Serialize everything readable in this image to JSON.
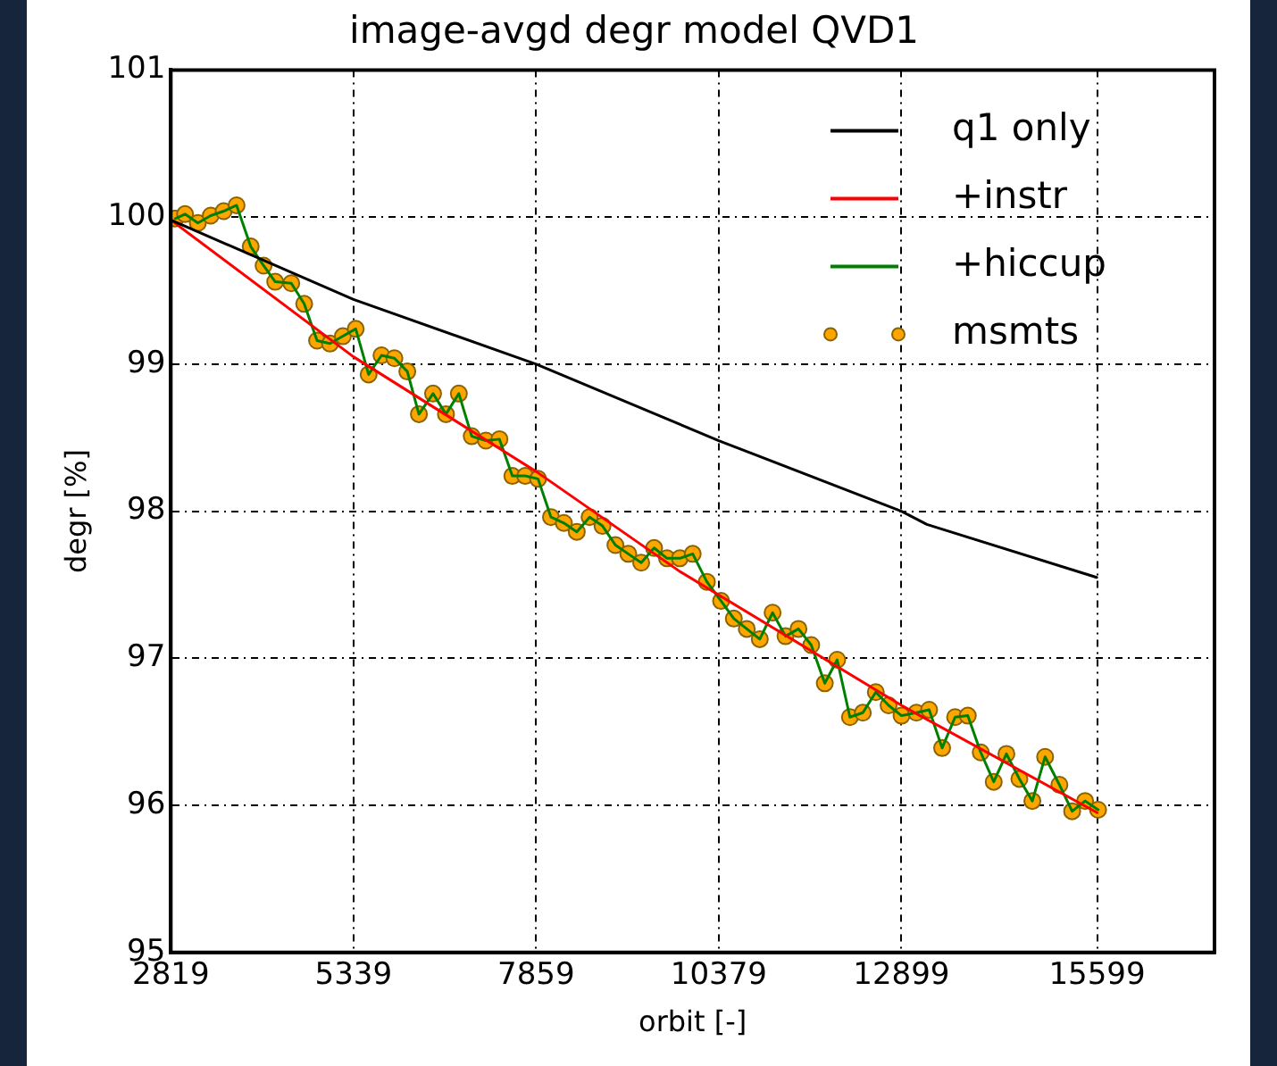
{
  "chart_data": {
    "type": "line",
    "title": "image-avgd degr model QVD1",
    "xlabel": "orbit [-]",
    "ylabel": "degr [%]",
    "xlim": [
      2819,
      17219
    ],
    "xticks": [
      2819,
      5339,
      7859,
      10379,
      12899,
      15599
    ],
    "ylim": [
      95,
      101
    ],
    "yticks": [
      95,
      96,
      97,
      98,
      99,
      100,
      101
    ],
    "grid": true,
    "legend": "top right",
    "line_style": "solid",
    "series": [
      {
        "name": "q1 only",
        "marker": "none",
        "color": "#000000",
        "x": [
          2819,
          5339,
          7859,
          10379,
          12899,
          13250,
          15594
        ],
        "values": [
          99.98,
          99.44,
          99.0,
          98.48,
          98.0,
          97.91,
          97.55
        ]
      },
      {
        "name": "+instr",
        "marker": "none",
        "color": "#ff0000",
        "x": [
          2819,
          5339,
          7859,
          9842,
          12899,
          15600
        ],
        "values": [
          99.98,
          99.05,
          98.27,
          97.59,
          96.68,
          95.95
        ]
      },
      {
        "name": "+hiccup",
        "marker": "none",
        "color": "#008000",
        "x": [
          2881,
          3015,
          3192,
          3370,
          3548,
          3726,
          3921,
          4099,
          4259,
          4481,
          4659,
          4837,
          5015,
          5193,
          5370,
          5548,
          5726,
          5904,
          6082,
          6242,
          6437,
          6615,
          6793,
          6971,
          7166,
          7353,
          7531,
          7709,
          7886,
          8064,
          8242,
          8420,
          8597,
          8775,
          8953,
          9131,
          9309,
          9487,
          9665,
          9842,
          10020,
          10215,
          10411,
          10587,
          10766,
          10945,
          11122,
          11300,
          11479,
          11655,
          11842,
          12013,
          12189,
          12367,
          12546,
          12722,
          12901,
          13106,
          13282,
          13461,
          13640,
          13815,
          13994,
          14173,
          14348,
          14527,
          14706,
          14882,
          15079,
          15255,
          15434,
          15613
        ],
        "values": [
          99.99,
          100.02,
          99.96,
          100.01,
          100.04,
          100.08,
          99.8,
          99.67,
          99.56,
          99.55,
          99.41,
          99.16,
          99.14,
          99.19,
          99.24,
          98.93,
          99.06,
          99.04,
          98.95,
          98.66,
          98.8,
          98.66,
          98.8,
          98.51,
          98.48,
          98.49,
          98.24,
          98.24,
          98.22,
          97.96,
          97.92,
          97.86,
          97.96,
          97.9,
          97.77,
          97.71,
          97.65,
          97.75,
          97.68,
          97.68,
          97.71,
          97.52,
          97.39,
          97.27,
          97.2,
          97.13,
          97.31,
          97.15,
          97.2,
          97.09,
          96.83,
          96.99,
          96.6,
          96.63,
          96.77,
          96.68,
          96.61,
          96.63,
          96.65,
          96.39,
          96.6,
          96.61,
          96.36,
          96.16,
          96.35,
          96.18,
          96.03,
          96.33,
          96.14,
          95.96,
          96.03,
          95.97
        ]
      },
      {
        "name": "msmts",
        "type": "scatter",
        "marker": "circle",
        "color": "#ffa500",
        "x": [
          2881,
          3015,
          3192,
          3370,
          3548,
          3726,
          3921,
          4099,
          4259,
          4481,
          4659,
          4837,
          5015,
          5193,
          5370,
          5548,
          5726,
          5904,
          6082,
          6242,
          6437,
          6615,
          6793,
          6971,
          7166,
          7353,
          7531,
          7709,
          7886,
          8064,
          8242,
          8420,
          8597,
          8775,
          8953,
          9131,
          9309,
          9487,
          9665,
          9842,
          10020,
          10215,
          10411,
          10587,
          10766,
          10945,
          11122,
          11300,
          11479,
          11655,
          11842,
          12013,
          12189,
          12367,
          12546,
          12722,
          12901,
          13106,
          13282,
          13461,
          13640,
          13815,
          13994,
          14173,
          14348,
          14527,
          14706,
          14882,
          15079,
          15255,
          15434,
          15613
        ],
        "values": [
          99.99,
          100.02,
          99.96,
          100.01,
          100.04,
          100.08,
          99.8,
          99.67,
          99.56,
          99.55,
          99.41,
          99.16,
          99.14,
          99.19,
          99.24,
          98.93,
          99.06,
          99.04,
          98.95,
          98.66,
          98.8,
          98.66,
          98.8,
          98.51,
          98.48,
          98.49,
          98.24,
          98.24,
          98.22,
          97.96,
          97.92,
          97.86,
          97.96,
          97.9,
          97.77,
          97.71,
          97.65,
          97.75,
          97.68,
          97.68,
          97.71,
          97.52,
          97.39,
          97.27,
          97.2,
          97.13,
          97.31,
          97.15,
          97.2,
          97.09,
          96.83,
          96.99,
          96.6,
          96.63,
          96.77,
          96.68,
          96.61,
          96.63,
          96.65,
          96.39,
          96.6,
          96.61,
          96.36,
          96.16,
          96.35,
          96.18,
          96.03,
          96.33,
          96.14,
          95.96,
          96.03,
          95.97
        ]
      }
    ]
  }
}
